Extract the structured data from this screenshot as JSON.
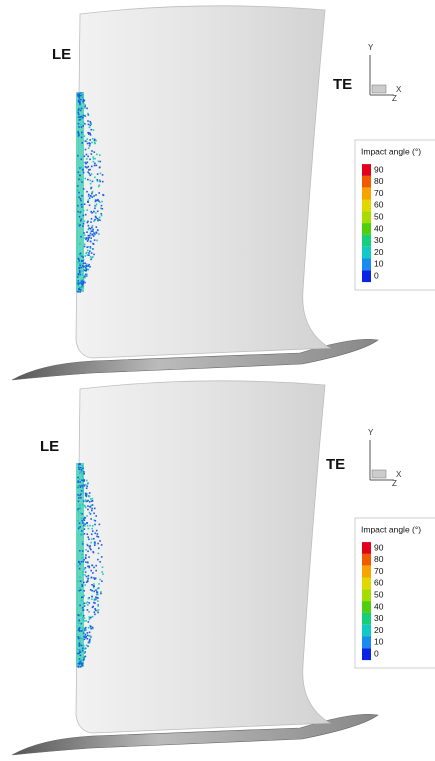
{
  "panels": [
    {
      "le": "LE",
      "te": "TE",
      "axes": {
        "y": "Y",
        "x": "X",
        "z": "Z"
      },
      "colorbar": {
        "title": "Impact angle (°)",
        "ticks": [
          90,
          80,
          70,
          60,
          50,
          40,
          30,
          20,
          10,
          0
        ],
        "colors": [
          "#e3001b",
          "#f25a00",
          "#f7a400",
          "#e2d800",
          "#a6dc00",
          "#4fcf10",
          "#15cf7a",
          "#12c9c6",
          "#1a8cf0",
          "#0a24e6"
        ]
      }
    },
    {
      "le": "LE",
      "te": "TE",
      "axes": {
        "y": "Y",
        "x": "X",
        "z": "Z"
      },
      "colorbar": {
        "title": "Impact angle (°)",
        "ticks": [
          90,
          80,
          70,
          60,
          50,
          40,
          30,
          20,
          10,
          0
        ],
        "colors": [
          "#e3001b",
          "#f25a00",
          "#f7a400",
          "#e2d800",
          "#a6dc00",
          "#4fcf10",
          "#15cf7a",
          "#12c9c6",
          "#1a8cf0",
          "#0a24e6"
        ]
      }
    }
  ]
}
